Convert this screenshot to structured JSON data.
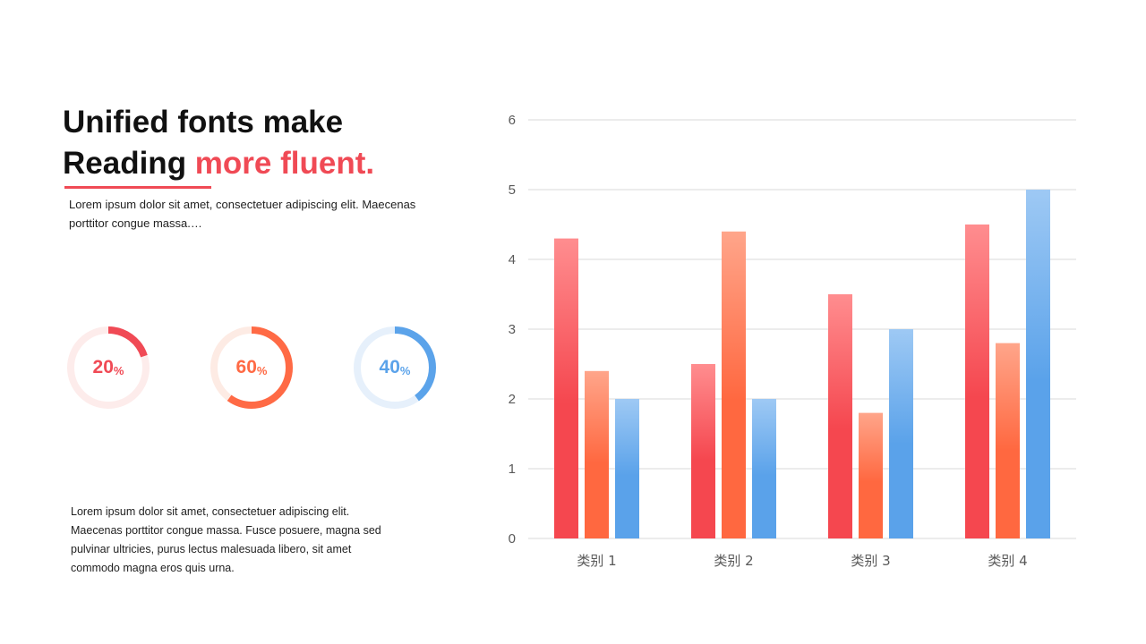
{
  "headline": {
    "line1": "Unified fonts make",
    "line2_plain": "Reading ",
    "line2_accent": "more fluent."
  },
  "intro_text": "Lorem ipsum dolor sit amet, consectetuer adipiscing elit. Maecenas porttitor congue massa.…",
  "body_text": "Lorem ipsum dolor sit amet, consectetuer adipiscing elit. Maecenas porttitor congue massa. Fusce posuere, magna sed pulvinar ultricies, purus lectus malesuada libero, sit amet commodo magna eros quis urna.",
  "rings": [
    {
      "value": "20",
      "unit": "%",
      "fraction": 0.2,
      "color": "#f04a55",
      "track": "#fdeceb"
    },
    {
      "value": "60",
      "unit": "%",
      "fraction": 0.6,
      "color": "#ff6a45",
      "track": "#fdebe4"
    },
    {
      "value": "40",
      "unit": "%",
      "fraction": 0.4,
      "color": "#5ba3ea",
      "track": "#e6f0fb"
    }
  ],
  "colors": {
    "accent": "#f04a55",
    "gridline": "#d9d9d9",
    "tick_text": "#595959"
  },
  "chart_data": {
    "type": "bar",
    "title": "",
    "xlabel": "",
    "ylabel": "",
    "categories": [
      "类别 1",
      "类别 2",
      "类别 3",
      "类别 4"
    ],
    "ylim": [
      0,
      6
    ],
    "yticks": [
      0,
      1,
      2,
      3,
      4,
      5,
      6
    ],
    "grid": true,
    "legend": "none",
    "series": [
      {
        "values": [
          4.3,
          2.5,
          3.5,
          4.5
        ],
        "color_top": "#ff8d8f",
        "color_bottom": "#f5474f"
      },
      {
        "values": [
          2.4,
          4.4,
          1.8,
          2.8
        ],
        "color_top": "#ffa58a",
        "color_bottom": "#ff6840"
      },
      {
        "values": [
          2.0,
          2.0,
          3.0,
          5.0
        ],
        "color_top": "#9ec9f4",
        "color_bottom": "#5aa2ea"
      }
    ]
  }
}
